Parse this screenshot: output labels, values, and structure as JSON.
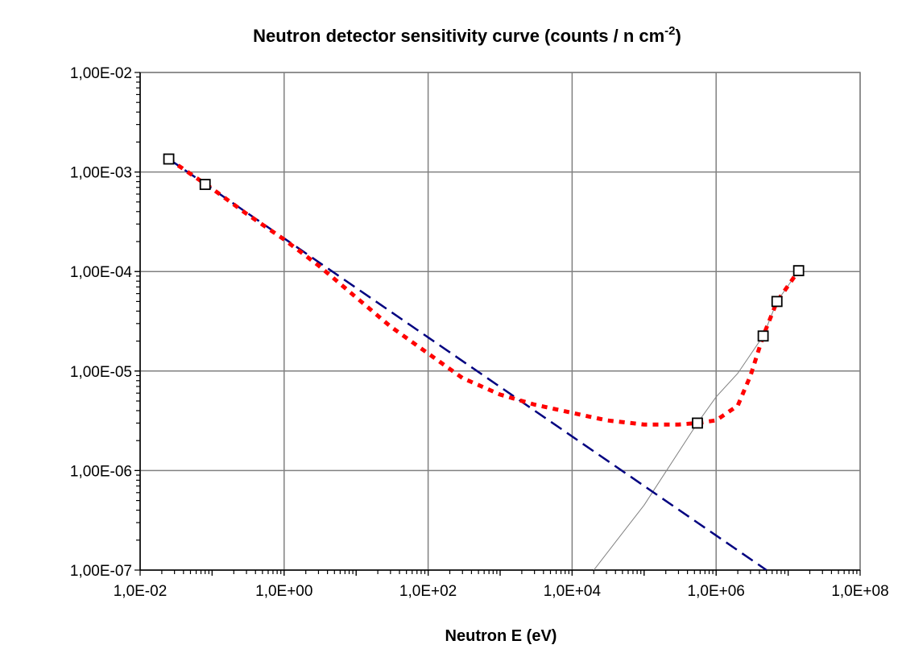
{
  "chart_data": {
    "type": "scatter",
    "title": "Neutron detector sensitivity curve (counts / n cm",
    "title_superscript": "-2",
    "title_close": ")",
    "xlabel": "Neutron E (eV)",
    "ylabel": "",
    "x_scale": "log",
    "y_scale": "log",
    "xlim": [
      0.01,
      100000000
    ],
    "ylim": [
      1e-07,
      0.01
    ],
    "grid": true,
    "x_ticks": [
      {
        "value": 0.01,
        "label": "1,0E-02"
      },
      {
        "value": 1,
        "label": "1,0E+00"
      },
      {
        "value": 100,
        "label": "1,0E+02"
      },
      {
        "value": 10000,
        "label": "1,0E+04"
      },
      {
        "value": 1000000,
        "label": "1,0E+06"
      },
      {
        "value": 100000000,
        "label": "1,0E+08"
      }
    ],
    "y_ticks": [
      {
        "value": 0.01,
        "label": "1,00E-02"
      },
      {
        "value": 0.001,
        "label": "1,00E-03"
      },
      {
        "value": 0.0001,
        "label": "1,00E-04"
      },
      {
        "value": 1e-05,
        "label": "1,00E-05"
      },
      {
        "value": 1e-06,
        "label": "1,00E-06"
      },
      {
        "value": 1e-07,
        "label": "1,00E-07"
      }
    ],
    "series": [
      {
        "style": "square-markers",
        "color": "#000000",
        "x": [
          0.025,
          0.08,
          550000,
          4500000,
          7000000,
          14000000
        ],
        "y": [
          0.00135,
          0.00075,
          3e-06,
          2.25e-05,
          5e-05,
          0.000102
        ]
      },
      {
        "style": "red-dotted",
        "color": "#ff0000",
        "x": [
          0.025,
          0.1,
          0.3,
          1,
          3,
          10,
          30,
          100,
          300,
          1000,
          3000,
          10000,
          30000,
          100000,
          300000,
          550000,
          1000000,
          2000000,
          3000000,
          4500000,
          7000000,
          14000000
        ],
        "y": [
          0.00135,
          0.00068,
          0.00038,
          0.00021,
          0.000115,
          5.5e-05,
          2.8e-05,
          1.5e-05,
          8.5e-06,
          5.8e-06,
          4.6e-06,
          3.8e-06,
          3.2e-06,
          2.9e-06,
          2.9e-06,
          3e-06,
          3.2e-06,
          4.5e-06,
          9e-06,
          2.25e-05,
          5e-05,
          0.000102
        ]
      },
      {
        "style": "navy-dashed",
        "color": "#000080",
        "x": [
          0.025,
          5000000
        ],
        "y": [
          0.00135,
          1e-07
        ]
      },
      {
        "style": "thin-gray-line",
        "color": "#808080",
        "x": [
          20000,
          100000,
          550000,
          1000000,
          2000000,
          4500000,
          7000000,
          14000000
        ],
        "y": [
          1e-07,
          4.5e-07,
          3e-06,
          5.5e-06,
          9.5e-06,
          2.25e-05,
          5e-05,
          0.000102
        ]
      }
    ]
  }
}
